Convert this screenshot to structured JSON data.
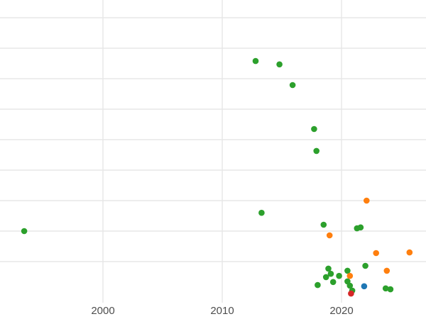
{
  "chart_data": {
    "type": "scatter",
    "title": "",
    "xlabel": "",
    "ylabel": "",
    "grid": true,
    "legend": "none",
    "background": "#ffffff",
    "grid_color": "#e7e7e7",
    "tick_text_color": "#4d4d4d",
    "x_axis": {
      "ticks": [
        {
          "label": "2000",
          "year": 2000
        },
        {
          "label": "2010",
          "year": 2010
        },
        {
          "label": "2020",
          "year": 2020
        }
      ],
      "range_years": [
        1991.4,
        2027.1
      ]
    },
    "y_axis": {
      "gridline_values": [
        1,
        2,
        3,
        4,
        5,
        6,
        7,
        8,
        9
      ],
      "range": [
        -0.3,
        9.0
      ],
      "labels_visible": false
    },
    "series": [
      {
        "name": "green",
        "color": "#2ca02c",
        "points": [
          [
            1993.4,
            2.0
          ],
          [
            2012.8,
            7.58
          ],
          [
            2014.8,
            7.47
          ],
          [
            2015.9,
            6.79
          ],
          [
            2017.7,
            5.35
          ],
          [
            2017.9,
            4.63
          ],
          [
            2013.3,
            2.6
          ],
          [
            2018.5,
            2.21
          ],
          [
            2021.3,
            2.09
          ],
          [
            2021.6,
            2.12
          ],
          [
            2022.0,
            0.86
          ],
          [
            2018.9,
            0.77
          ],
          [
            2019.1,
            0.6
          ],
          [
            2018.7,
            0.49
          ],
          [
            2019.8,
            0.53
          ],
          [
            2020.5,
            0.7
          ],
          [
            2018.0,
            0.23
          ],
          [
            2019.3,
            0.33
          ],
          [
            2020.5,
            0.35
          ],
          [
            2020.7,
            0.21
          ],
          [
            2020.9,
            0.05
          ],
          [
            2023.7,
            0.12
          ],
          [
            2024.1,
            0.09
          ]
        ]
      },
      {
        "name": "orange",
        "color": "#ff7f0e",
        "points": [
          [
            2022.1,
            3.0
          ],
          [
            2019.0,
            1.86
          ],
          [
            2022.9,
            1.28
          ],
          [
            2025.7,
            1.3
          ],
          [
            2023.8,
            0.7
          ],
          [
            2020.7,
            0.53
          ]
        ]
      },
      {
        "name": "blue",
        "color": "#1f77b4",
        "points": [
          [
            2021.9,
            0.19
          ]
        ]
      },
      {
        "name": "red",
        "color": "#d62728",
        "points": [
          [
            2020.8,
            -0.05
          ]
        ]
      }
    ]
  }
}
